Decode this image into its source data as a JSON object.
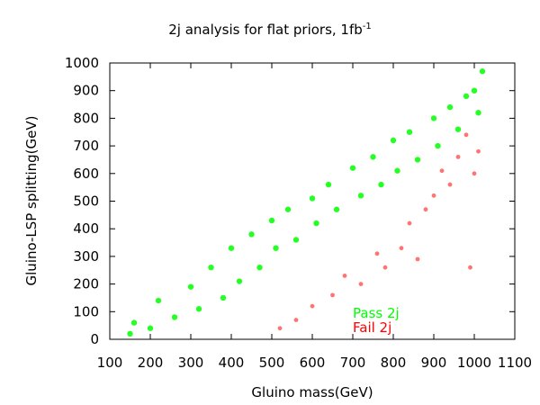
{
  "chart_data": {
    "type": "scatter",
    "title": "2j analysis for flat priors, 1fb",
    "title_superscript": "-1",
    "xlabel": "Gluino mass(GeV)",
    "ylabel": "Gluino-LSP splitting(GeV)",
    "xlim": [
      100,
      1100
    ],
    "ylim": [
      0,
      1000
    ],
    "xticks": [
      "100",
      "200",
      "300",
      "400",
      "500",
      "600",
      "700",
      "800",
      "900",
      "1000",
      "1100"
    ],
    "yticks": [
      "0",
      "100",
      "200",
      "300",
      "400",
      "500",
      "600",
      "700",
      "800",
      "900",
      "1000"
    ],
    "x_values": [
      100,
      200,
      300,
      400,
      500,
      600,
      700,
      800,
      900,
      1000,
      1100
    ],
    "y_values": [
      0,
      100,
      200,
      300,
      400,
      500,
      600,
      700,
      800,
      900,
      1000
    ],
    "legend_position": "bottom-right",
    "series": [
      {
        "name": "Pass 2j",
        "color": "#00ff00",
        "points": [
          [
            150,
            20
          ],
          [
            160,
            60
          ],
          [
            200,
            40
          ],
          [
            220,
            140
          ],
          [
            260,
            80
          ],
          [
            300,
            190
          ],
          [
            320,
            110
          ],
          [
            350,
            260
          ],
          [
            380,
            150
          ],
          [
            400,
            330
          ],
          [
            420,
            210
          ],
          [
            450,
            380
          ],
          [
            470,
            260
          ],
          [
            500,
            430
          ],
          [
            510,
            330
          ],
          [
            540,
            470
          ],
          [
            560,
            360
          ],
          [
            600,
            510
          ],
          [
            610,
            420
          ],
          [
            640,
            560
          ],
          [
            660,
            470
          ],
          [
            700,
            620
          ],
          [
            720,
            520
          ],
          [
            750,
            660
          ],
          [
            770,
            560
          ],
          [
            800,
            720
          ],
          [
            810,
            610
          ],
          [
            840,
            750
          ],
          [
            860,
            650
          ],
          [
            900,
            800
          ],
          [
            910,
            700
          ],
          [
            940,
            840
          ],
          [
            960,
            760
          ],
          [
            980,
            880
          ],
          [
            1000,
            900
          ],
          [
            1010,
            820
          ],
          [
            1020,
            970
          ]
        ]
      },
      {
        "name": "Fail 2j",
        "color": "#ff0000",
        "points": [
          [
            520,
            40
          ],
          [
            560,
            70
          ],
          [
            600,
            120
          ],
          [
            650,
            160
          ],
          [
            680,
            230
          ],
          [
            720,
            200
          ],
          [
            760,
            310
          ],
          [
            780,
            260
          ],
          [
            820,
            330
          ],
          [
            840,
            420
          ],
          [
            860,
            290
          ],
          [
            880,
            470
          ],
          [
            900,
            520
          ],
          [
            920,
            610
          ],
          [
            940,
            560
          ],
          [
            960,
            660
          ],
          [
            980,
            740
          ],
          [
            1000,
            600
          ],
          [
            1010,
            680
          ],
          [
            990,
            260
          ]
        ]
      }
    ]
  }
}
